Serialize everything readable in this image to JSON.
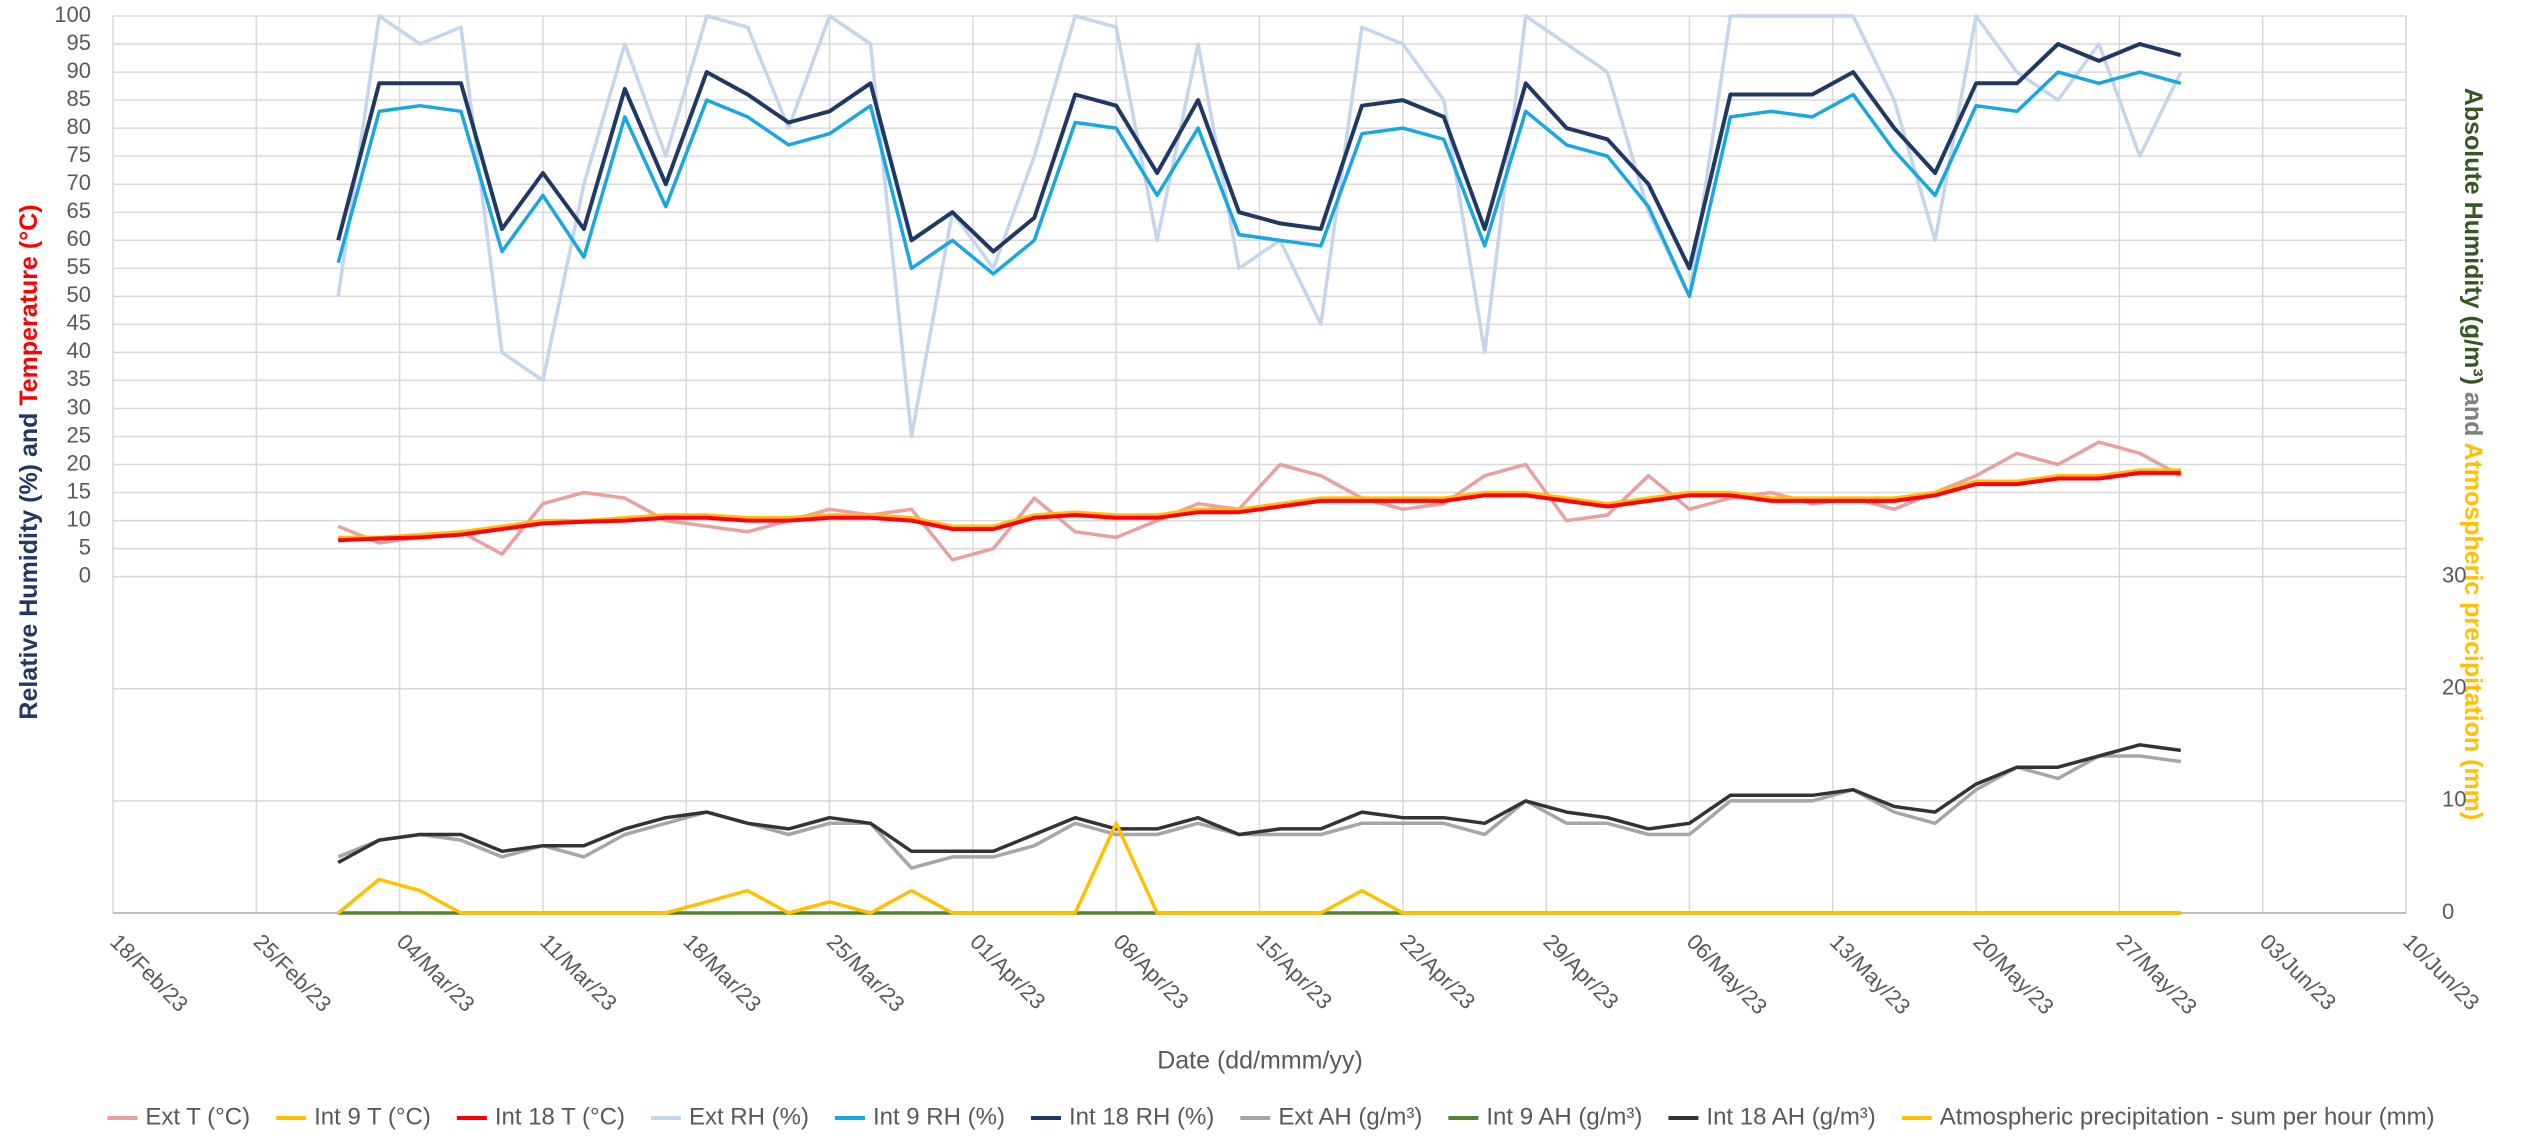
{
  "chart_data": {
    "type": "line",
    "x_label": "Date (dd/mmm/yy)",
    "y_label_parts": [
      "Relative Humidity  (%) and ",
      "Temperature (°C)"
    ],
    "y2_label_parts": [
      "Absolute Humidity (g/m³)",
      " and ",
      "Atmospheric precipitation (mm)"
    ],
    "y_label_colors": [
      "#1f3864",
      "#ff0000"
    ],
    "y2_label_colors": [
      "#375623",
      "#7f7f7f",
      "#ffc000"
    ],
    "x": [
      "2023-03-01",
      "2023-03-03",
      "2023-03-05",
      "2023-03-07",
      "2023-03-09",
      "2023-03-11",
      "2023-03-13",
      "2023-03-15",
      "2023-03-17",
      "2023-03-19",
      "2023-03-21",
      "2023-03-23",
      "2023-03-25",
      "2023-03-27",
      "2023-03-29",
      "2023-03-31",
      "2023-04-02",
      "2023-04-04",
      "2023-04-06",
      "2023-04-08",
      "2023-04-10",
      "2023-04-12",
      "2023-04-14",
      "2023-04-16",
      "2023-04-18",
      "2023-04-20",
      "2023-04-22",
      "2023-04-24",
      "2023-04-26",
      "2023-04-28",
      "2023-04-30",
      "2023-05-02",
      "2023-05-04",
      "2023-05-06",
      "2023-05-08",
      "2023-05-10",
      "2023-05-12",
      "2023-05-14",
      "2023-05-16",
      "2023-05-18",
      "2023-05-20",
      "2023-05-22",
      "2023-05-24",
      "2023-05-26",
      "2023-05-28",
      "2023-05-30"
    ],
    "xlim": [
      "2023-02-18",
      "2023-06-10"
    ],
    "xticks": [
      {
        "value": "2023-02-18",
        "label": "18/Feb/23"
      },
      {
        "value": "2023-02-25",
        "label": "25/Feb/23"
      },
      {
        "value": "2023-03-04",
        "label": "04/Mar/23"
      },
      {
        "value": "2023-03-11",
        "label": "11/Mar/23"
      },
      {
        "value": "2023-03-18",
        "label": "18/Mar/23"
      },
      {
        "value": "2023-03-25",
        "label": "25/Mar/23"
      },
      {
        "value": "2023-04-01",
        "label": "01/Apr/23"
      },
      {
        "value": "2023-04-08",
        "label": "08/Apr/23"
      },
      {
        "value": "2023-04-15",
        "label": "15/Apr/23"
      },
      {
        "value": "2023-04-22",
        "label": "22/Apr/23"
      },
      {
        "value": "2023-04-29",
        "label": "29/Apr/23"
      },
      {
        "value": "2023-05-06",
        "label": "06/May/23"
      },
      {
        "value": "2023-05-13",
        "label": "13/May/23"
      },
      {
        "value": "2023-05-20",
        "label": "20/May/23"
      },
      {
        "value": "2023-05-27",
        "label": "27/May/23"
      },
      {
        "value": "2023-06-03",
        "label": "03/Jun/23"
      },
      {
        "value": "2023-06-10",
        "label": "10/Jun/23"
      }
    ],
    "ylim": [
      -60,
      100
    ],
    "yticks": [
      0,
      5,
      10,
      15,
      20,
      25,
      30,
      35,
      40,
      45,
      50,
      55,
      60,
      65,
      70,
      75,
      80,
      85,
      90,
      95,
      100
    ],
    "y2lim": [
      0,
      80
    ],
    "y2ticks": [
      0,
      10,
      20,
      30
    ],
    "grid": true,
    "legend": "bottom",
    "series": [
      {
        "name": "Ext T (°C)",
        "color": "#e8a0a0",
        "values": [
          9,
          6,
          7,
          8,
          4,
          13,
          15,
          14,
          10,
          9,
          8,
          10,
          12,
          11,
          12,
          3,
          5,
          14,
          8,
          7,
          10,
          13,
          12,
          20,
          18,
          14,
          12,
          13,
          18,
          20,
          10,
          11,
          18,
          12,
          14,
          15,
          13,
          14,
          12,
          15,
          18,
          22,
          20,
          24,
          22,
          18
        ]
      },
      {
        "name": "Int 9 T (°C)",
        "color": "#ffc000",
        "values": [
          7,
          7,
          7.5,
          8,
          9,
          10,
          10,
          10.5,
          11,
          11,
          10.5,
          10.5,
          11,
          11,
          10.5,
          9,
          9,
          11,
          11.5,
          11,
          11,
          12,
          12,
          13,
          14,
          14,
          14,
          14,
          15,
          15,
          14,
          13,
          14,
          15,
          15,
          14,
          14,
          14,
          14,
          15,
          17,
          17,
          18,
          18,
          19,
          19
        ]
      },
      {
        "name": "Int 18 T (°C)",
        "color": "#ff0000",
        "values": [
          6.5,
          6.8,
          7,
          7.5,
          8.5,
          9.5,
          9.8,
          10,
          10.5,
          10.5,
          10,
          10,
          10.5,
          10.5,
          10,
          8.5,
          8.5,
          10.5,
          11,
          10.5,
          10.5,
          11.5,
          11.5,
          12.5,
          13.5,
          13.5,
          13.5,
          13.5,
          14.5,
          14.5,
          13.5,
          12.5,
          13.5,
          14.5,
          14.5,
          13.5,
          13.5,
          13.5,
          13.5,
          14.5,
          16.5,
          16.5,
          17.5,
          17.5,
          18.5,
          18.5
        ]
      },
      {
        "name": "Ext RH (%)",
        "color": "#c5d5ec",
        "values": [
          50,
          100,
          95,
          98,
          40,
          35,
          70,
          95,
          75,
          100,
          98,
          80,
          100,
          95,
          25,
          65,
          55,
          75,
          100,
          98,
          60,
          95,
          55,
          60,
          45,
          98,
          95,
          85,
          40,
          100,
          95,
          90,
          65,
          50,
          100,
          100,
          100,
          100,
          85,
          60,
          100,
          90,
          85,
          95,
          75,
          90
        ]
      },
      {
        "name": "Int 9 RH (%)",
        "color": "#1aa7e0",
        "values": [
          56,
          83,
          84,
          83,
          58,
          68,
          57,
          82,
          66,
          85,
          82,
          77,
          79,
          84,
          55,
          60,
          54,
          60,
          81,
          80,
          68,
          80,
          61,
          60,
          59,
          79,
          80,
          78,
          59,
          83,
          77,
          75,
          66,
          50,
          82,
          83,
          82,
          86,
          76,
          68,
          84,
          83,
          90,
          88,
          90,
          88
        ]
      },
      {
        "name": "Int 18 RH (%)",
        "color": "#1f3864",
        "values": [
          60,
          88,
          88,
          88,
          62,
          72,
          62,
          87,
          70,
          90,
          86,
          81,
          83,
          88,
          60,
          65,
          58,
          64,
          86,
          84,
          72,
          85,
          65,
          63,
          62,
          84,
          85,
          82,
          62,
          88,
          80,
          78,
          70,
          55,
          86,
          86,
          86,
          90,
          80,
          72,
          88,
          88,
          95,
          92,
          95,
          93
        ]
      },
      {
        "name": "Ext AH (g/m³)",
        "color": "#a6a6a6",
        "axis": "y2",
        "values": [
          5,
          6.5,
          7,
          6.5,
          5,
          6,
          5,
          7,
          8,
          9,
          8,
          7,
          8,
          8,
          4,
          5,
          5,
          6,
          8,
          7,
          7,
          8,
          7,
          7,
          7,
          8,
          8,
          8,
          7,
          10,
          8,
          8,
          7,
          7,
          10,
          10,
          10,
          11,
          9,
          8,
          11,
          13,
          12,
          14,
          14,
          13.5
        ]
      },
      {
        "name": "Int 9 AH (g/m³)",
        "color": "#548235",
        "axis": "y2",
        "values": [
          0,
          0,
          0,
          0,
          0,
          0,
          0,
          0,
          0,
          0,
          0,
          0,
          0,
          0,
          0,
          0,
          0,
          0,
          0,
          0,
          0,
          0,
          0,
          0,
          0,
          0,
          0,
          0,
          0,
          0,
          0,
          0,
          0,
          0,
          0,
          0,
          0,
          0,
          0,
          0,
          0,
          0,
          0,
          0,
          0,
          0
        ]
      },
      {
        "name": "Int 18 AH (g/m³)",
        "color": "#333333",
        "axis": "y2",
        "values": [
          4.5,
          6.5,
          7,
          7,
          5.5,
          6,
          6,
          7.5,
          8.5,
          9,
          8,
          7.5,
          8.5,
          8,
          5.5,
          5.5,
          5.5,
          7,
          8.5,
          7.5,
          7.5,
          8.5,
          7,
          7.5,
          7.5,
          9,
          8.5,
          8.5,
          8,
          10,
          9,
          8.5,
          7.5,
          8,
          10.5,
          10.5,
          10.5,
          11,
          9.5,
          9,
          11.5,
          13,
          13,
          14,
          15,
          14.5
        ]
      },
      {
        "name": "Atmospheric precipitation - sum per hour (mm)",
        "color": "#ffc000",
        "axis": "y2",
        "values": [
          0,
          3,
          2,
          0,
          0,
          0,
          0,
          0,
          0,
          1,
          2,
          0,
          1,
          0,
          2,
          0,
          0,
          0,
          0,
          8,
          0,
          0,
          0,
          0,
          0,
          2,
          0,
          0,
          0,
          0,
          0,
          0,
          0,
          0,
          0,
          0,
          0,
          0,
          0,
          0,
          0,
          0,
          0,
          0,
          0,
          0
        ]
      }
    ]
  }
}
